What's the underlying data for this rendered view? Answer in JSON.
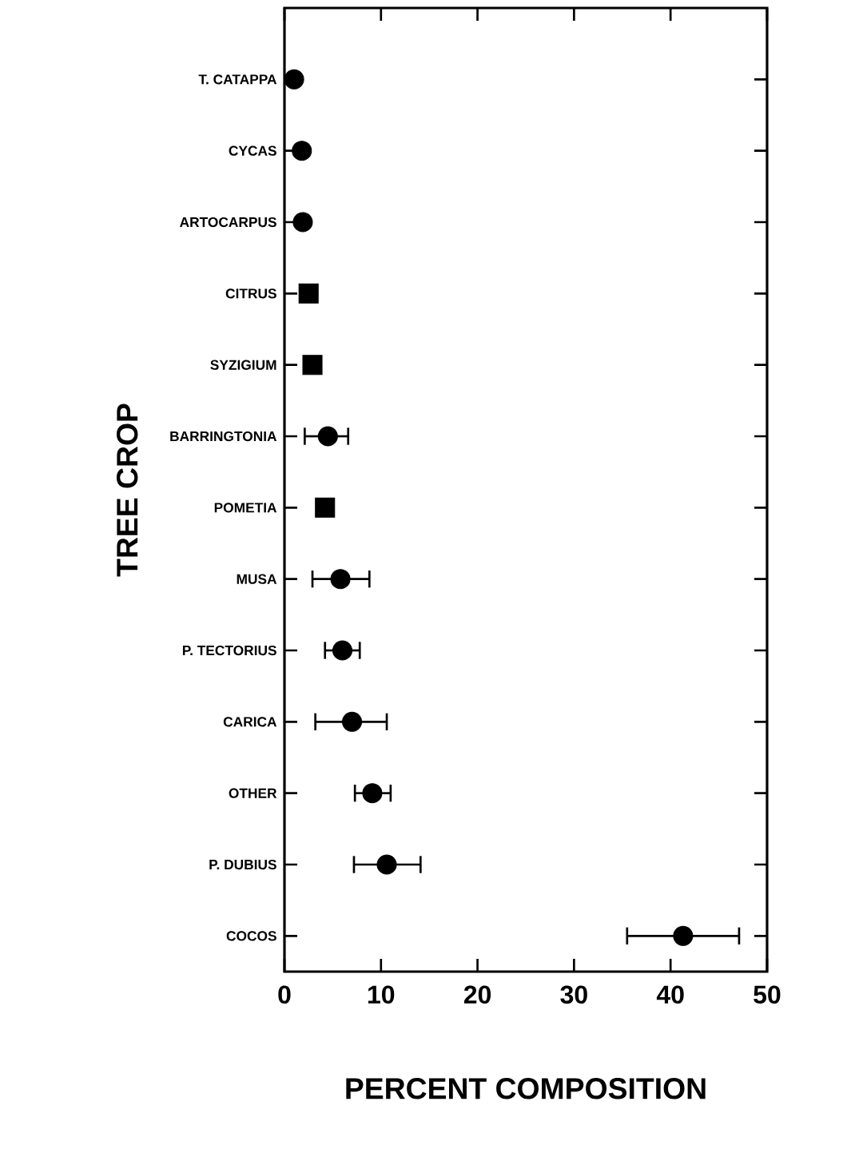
{
  "chart_data": {
    "type": "scatter",
    "orientation": "horizontal",
    "xlabel": "PERCENT COMPOSITION",
    "ylabel": "TREE CROP",
    "categories": [
      "T. CATAPPA",
      "CYCAS",
      "ARTOCARPUS",
      "CITRUS",
      "SYZIGIUM",
      "BARRINGTONIA",
      "POMETIA",
      "MUSA",
      "P. TECTORIUS",
      "CARICA",
      "OTHER",
      "P. DUBIUS",
      "COCOS"
    ],
    "series": [
      {
        "color": "#000000",
        "marker": "circle",
        "values": [
          1.0,
          1.8,
          1.9,
          null,
          null,
          4.5,
          null,
          5.8,
          6.0,
          7.0,
          9.1,
          10.6,
          41.3
        ],
        "errors": [
          null,
          null,
          null,
          null,
          null,
          [
            2.1,
            6.6
          ],
          null,
          [
            2.9,
            8.8
          ],
          [
            4.2,
            7.8
          ],
          [
            3.2,
            10.6
          ],
          [
            7.3,
            11.0
          ],
          [
            7.2,
            14.1
          ],
          [
            35.5,
            47.1
          ]
        ]
      },
      {
        "color": "#000000",
        "marker": "square",
        "values": [
          null,
          null,
          null,
          2.5,
          2.9,
          null,
          4.2,
          null,
          null,
          null,
          null,
          null,
          null
        ],
        "errors": [
          null,
          null,
          null,
          null,
          null,
          null,
          null,
          null,
          null,
          null,
          null,
          null,
          null
        ]
      }
    ],
    "xlim": [
      0,
      50
    ],
    "xticks": [
      0,
      10,
      20,
      30,
      40,
      50
    ],
    "grid": false
  }
}
